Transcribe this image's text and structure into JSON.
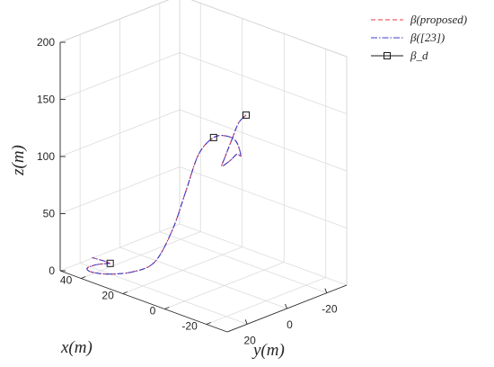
{
  "chart_data": {
    "type": "line",
    "projection": "3d",
    "title": "",
    "xlabel": "x(m)",
    "ylabel": "y(m)",
    "zlabel": "z(m)",
    "xlim": [
      -30,
      50
    ],
    "ylim": [
      -30,
      30
    ],
    "zlim": [
      0,
      200
    ],
    "xticks": [
      "-20",
      "0",
      "20",
      "40"
    ],
    "yticks": [
      "-20",
      "0",
      "20"
    ],
    "zticks": [
      "0",
      "50",
      "100",
      "150",
      "200"
    ],
    "grid": true,
    "legend_position": "top-right",
    "series": [
      {
        "name": "β(proposed)",
        "color": "#e8383c",
        "dash": "dashed",
        "points": [
          [
            40.8,
            14.5,
            2
          ],
          [
            44.0,
            17.5,
            1
          ],
          [
            44.3,
            22.3,
            1
          ],
          [
            41.0,
            24.0,
            1
          ],
          [
            35.4,
            21.4,
            1
          ],
          [
            30.6,
            13.8,
            1
          ],
          [
            28.6,
            4.9,
            5
          ],
          [
            26.5,
            -1.8,
            30
          ],
          [
            24.8,
            -6.8,
            62
          ],
          [
            23.0,
            -11.3,
            92
          ],
          [
            20.4,
            -16.0,
            105
          ],
          [
            15.9,
            -17.9,
            108
          ],
          [
            10.0,
            -16.5,
            108
          ],
          [
            2.2,
            -10.6,
            105
          ],
          [
            -3.8,
            -2.3,
            116
          ],
          [
            -11.8,
            9.2,
            124
          ],
          [
            -20.6,
            22.8,
            134
          ],
          [
            -27.8,
            29.0,
            150
          ],
          [
            -27.2,
            24.7,
            163
          ],
          [
            -22.0,
            15.9,
            168
          ],
          [
            -18.9,
            8.9,
            168
          ]
        ]
      },
      {
        "name": "β([23])",
        "color": "#3c3ccc",
        "dash": "dashdot",
        "points": [
          [
            40.8,
            14.5,
            2
          ],
          [
            44.0,
            17.5,
            1
          ],
          [
            44.3,
            22.3,
            1
          ],
          [
            41.0,
            24.0,
            1
          ],
          [
            35.4,
            21.4,
            1
          ],
          [
            30.6,
            13.8,
            1
          ],
          [
            28.6,
            4.9,
            5
          ],
          [
            26.5,
            -1.8,
            30
          ],
          [
            24.8,
            -6.8,
            62
          ],
          [
            23.0,
            -11.3,
            92
          ],
          [
            20.4,
            -16.0,
            105
          ],
          [
            15.9,
            -17.9,
            108
          ],
          [
            10.0,
            -16.5,
            108
          ],
          [
            2.2,
            -10.6,
            105
          ],
          [
            -3.8,
            -2.3,
            116
          ],
          [
            -11.8,
            9.2,
            124
          ],
          [
            -20.6,
            22.8,
            134
          ],
          [
            -27.8,
            29.0,
            150
          ],
          [
            -27.2,
            24.7,
            163
          ],
          [
            -22.0,
            15.9,
            168
          ],
          [
            -18.9,
            8.9,
            168
          ]
        ]
      },
      {
        "name": "β_d",
        "color": "#1a1a1a",
        "dash": "solid",
        "marker": "square",
        "markers": [
          [
            40.8,
            14.5,
            2
          ],
          [
            20.4,
            -16.0,
            105
          ],
          [
            -18.9,
            8.9,
            168
          ]
        ]
      }
    ],
    "initial_transient": {
      "series": [
        "β(proposed)",
        "β([23])"
      ],
      "points": [
        [
          44.6,
          19.6,
          8
        ],
        [
          42.0,
          16.7,
          5
        ],
        [
          40.8,
          14.5,
          2
        ]
      ]
    }
  }
}
